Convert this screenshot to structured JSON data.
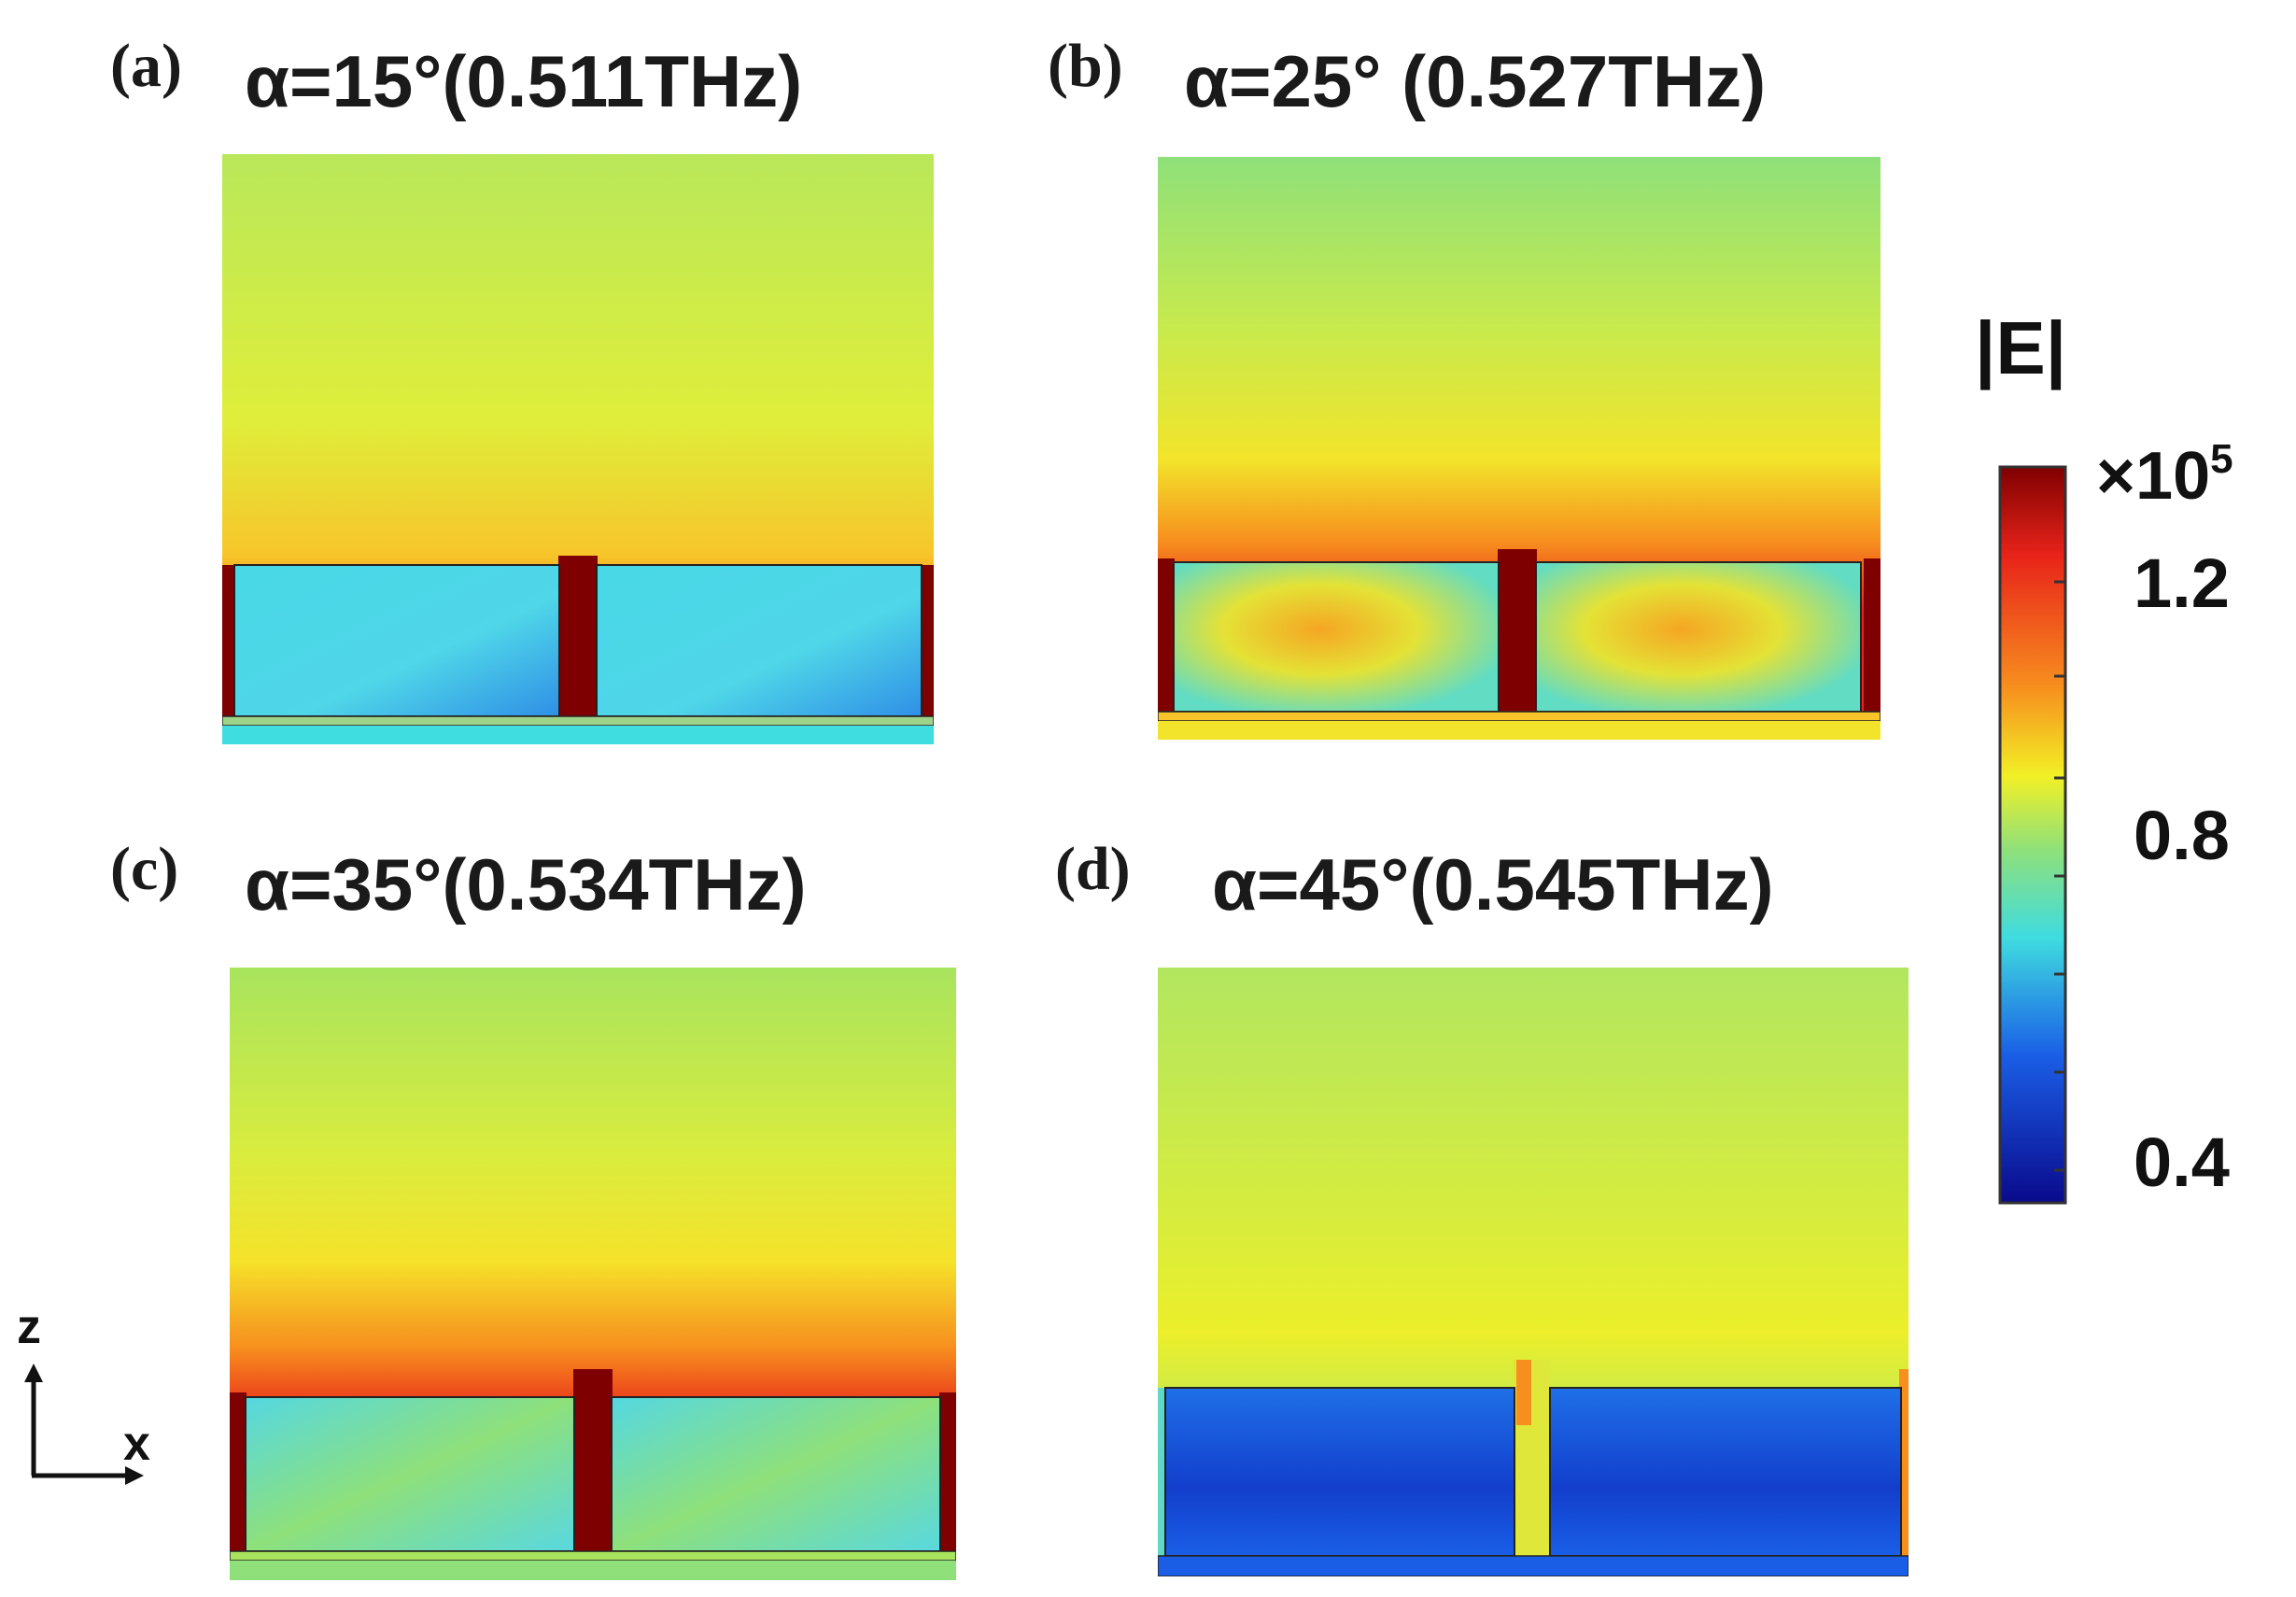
{
  "panels": [
    {
      "label": "(a)",
      "title": "α=15°(0.511THz)",
      "inner": "cyan"
    },
    {
      "label": "(b)",
      "title": "α=25° (0.527THz)",
      "inner": "orange"
    },
    {
      "label": "(c)",
      "title": "α=35°(0.534THz)",
      "inner": "cyan"
    },
    {
      "label": "(d)",
      "title": "α=45°(0.545THz)",
      "inner": "blue"
    }
  ],
  "colorbar": {
    "title": "|E|",
    "multiplier_base": "×10",
    "multiplier_exp": "5",
    "ticks": [
      "1.2",
      "0.8",
      "0.4"
    ]
  },
  "axes": {
    "z": "z",
    "x": "x"
  },
  "colors": {
    "dark_red": "#7f0000",
    "red": "#e8231a",
    "orange": "#f78f1e",
    "yellow": "#f2f026",
    "green": "#8fe07a",
    "cyan": "#3fdce0",
    "blue": "#1a5ee6",
    "dark_blue": "#0a0a8c"
  }
}
